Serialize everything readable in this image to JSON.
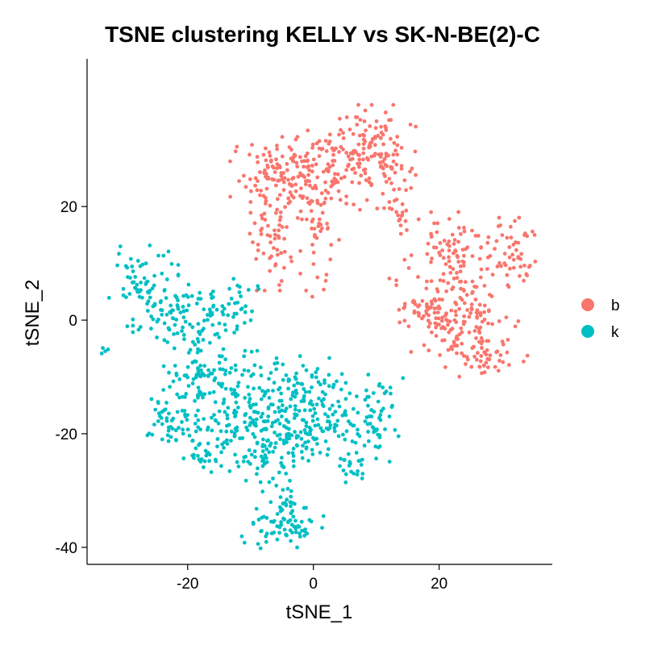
{
  "chart_data": {
    "type": "scatter",
    "title": "TSNE clustering KELLY vs SK-N-BE(2)-C",
    "xlabel": "tSNE_1",
    "ylabel": "tSNE_2",
    "xlim": [
      -36,
      38
    ],
    "ylim": [
      -43,
      46
    ],
    "x_ticks": [
      -20,
      0,
      20
    ],
    "y_ticks": [
      -40,
      -20,
      0,
      20
    ],
    "grid": false,
    "legend_position": "right",
    "series": [
      {
        "name": "b",
        "color": "#F8766D",
        "clusters": [
          {
            "cx": -4,
            "cy": 25,
            "sx": 4.2,
            "sy": 3.3,
            "n": 170
          },
          {
            "cx": -6,
            "cy": 14,
            "sx": 2.2,
            "sy": 4.0,
            "n": 55
          },
          {
            "cx": 1,
            "cy": 18,
            "sx": 1.4,
            "sy": 7.0,
            "n": 40
          },
          {
            "cx": 6,
            "cy": 30,
            "sx": 2.3,
            "sy": 2.6,
            "n": 75
          },
          {
            "cx": 11,
            "cy": 28,
            "sx": 2.4,
            "sy": 4.5,
            "n": 80
          },
          {
            "cx": 14.5,
            "cy": 21,
            "sx": 1.1,
            "sy": 3.2,
            "n": 28
          },
          {
            "cx": 22,
            "cy": 12,
            "sx": 4.0,
            "sy": 3.2,
            "n": 90
          },
          {
            "cx": 32,
            "cy": 11,
            "sx": 2.2,
            "sy": 3.2,
            "n": 45
          },
          {
            "cx": 20,
            "cy": 1,
            "sx": 3.6,
            "sy": 3.0,
            "n": 100
          },
          {
            "cx": 26,
            "cy": 1,
            "sx": 3.0,
            "sy": 4.5,
            "n": 70
          },
          {
            "cx": 27,
            "cy": -6,
            "sx": 3.3,
            "sy": 1.8,
            "n": 45
          }
        ]
      },
      {
        "name": "k",
        "color": "#00BFC4",
        "clusters": [
          {
            "cx": -27,
            "cy": 7,
            "sx": 2.5,
            "sy": 2.8,
            "n": 55
          },
          {
            "cx": -23,
            "cy": 1,
            "sx": 3.0,
            "sy": 2.6,
            "n": 65
          },
          {
            "cx": -17,
            "cy": 1,
            "sx": 2.8,
            "sy": 2.6,
            "n": 45
          },
          {
            "cx": -12,
            "cy": 2,
            "sx": 1.8,
            "sy": 2.4,
            "n": 25
          },
          {
            "cx": -19,
            "cy": -10,
            "sx": 2.6,
            "sy": 2.8,
            "n": 70
          },
          {
            "cx": -10,
            "cy": -12,
            "sx": 3.8,
            "sy": 3.0,
            "n": 90
          },
          {
            "cx": -1,
            "cy": -12,
            "sx": 2.8,
            "sy": 3.2,
            "n": 65
          },
          {
            "cx": -22,
            "cy": -18,
            "sx": 2.4,
            "sy": 2.6,
            "n": 50
          },
          {
            "cx": -12,
            "cy": -19,
            "sx": 3.5,
            "sy": 2.8,
            "n": 90
          },
          {
            "cx": -4,
            "cy": -20,
            "sx": 3.0,
            "sy": 2.6,
            "n": 70
          },
          {
            "cx": 3,
            "cy": -18,
            "sx": 2.6,
            "sy": 3.0,
            "n": 55
          },
          {
            "cx": 10,
            "cy": -17,
            "sx": 2.2,
            "sy": 3.6,
            "n": 60
          },
          {
            "cx": -17,
            "cy": -24,
            "sx": 1.8,
            "sy": 1.5,
            "n": 25
          },
          {
            "cx": -8,
            "cy": -25,
            "sx": 2.2,
            "sy": 1.6,
            "n": 30
          },
          {
            "cx": 6,
            "cy": -26,
            "sx": 1.5,
            "sy": 1.3,
            "n": 18
          },
          {
            "cx": -5,
            "cy": -36,
            "sx": 3.0,
            "sy": 2.0,
            "n": 70
          },
          {
            "cx": -5,
            "cy": -31,
            "sx": 1.4,
            "sy": 1.6,
            "n": 18
          },
          {
            "cx": -33,
            "cy": -5,
            "sx": 0.4,
            "sy": 1.0,
            "n": 4
          }
        ]
      }
    ]
  }
}
